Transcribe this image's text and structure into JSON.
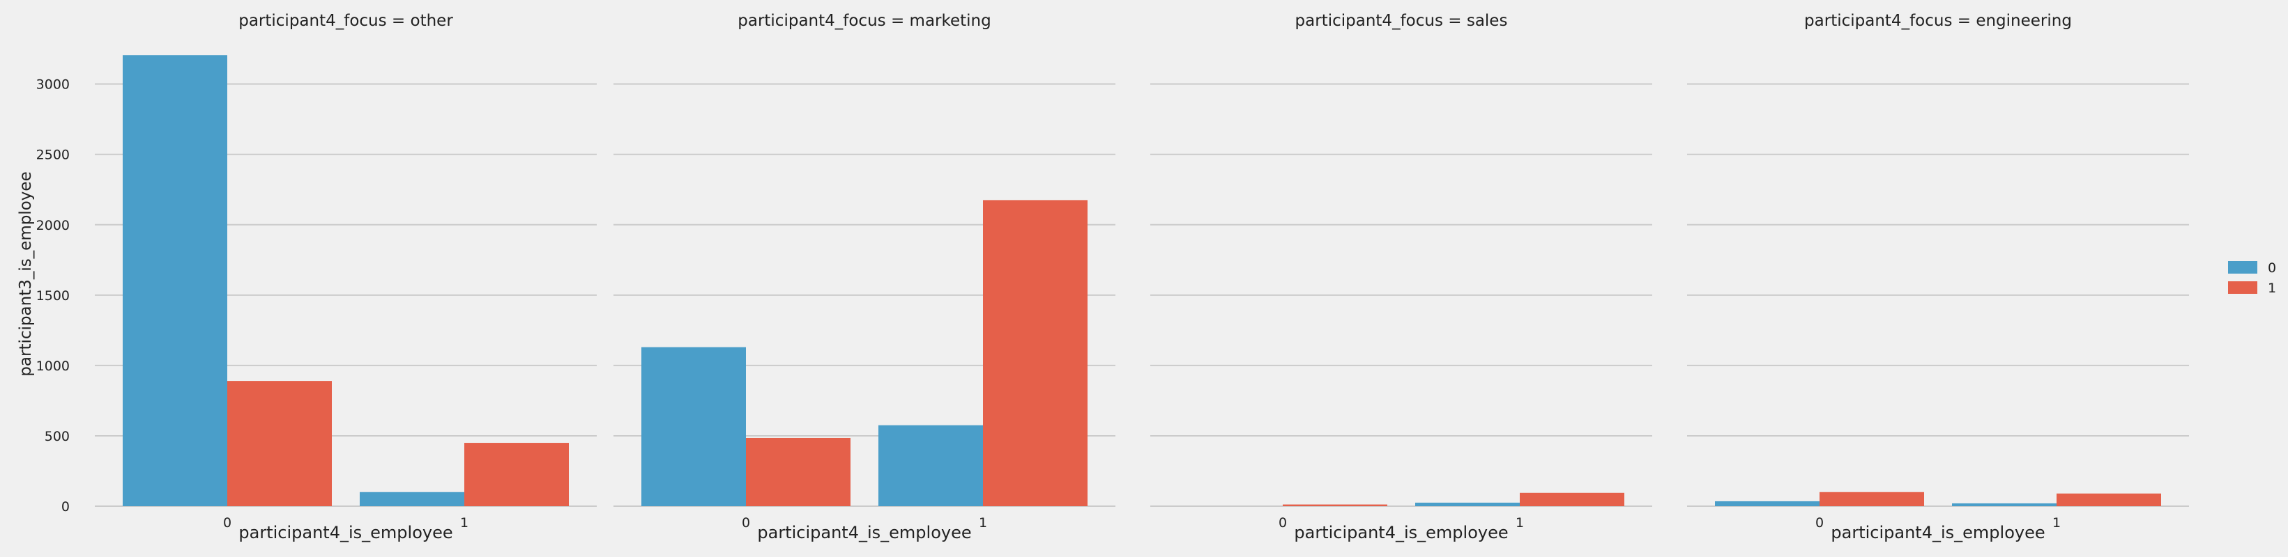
{
  "chart_data": {
    "type": "bar",
    "ylabel": "participant3_is_employee",
    "ylim": [
      0,
      3300
    ],
    "yticks": [
      0,
      500,
      1000,
      1500,
      2000,
      2500,
      3000
    ],
    "grid": true,
    "legend": {
      "placement": "right",
      "entries": [
        {
          "label": "0",
          "color": "#4a9ec9"
        },
        {
          "label": "1",
          "color": "#e5604a"
        }
      ]
    },
    "hue_values": [
      "0",
      "1"
    ],
    "facets": [
      {
        "title": "participant4_focus = other",
        "xlabel": "participant4_is_employee",
        "categories": [
          "0",
          "1"
        ],
        "series": [
          {
            "name": "0",
            "values": [
              3205,
              100
            ]
          },
          {
            "name": "1",
            "values": [
              890,
              450
            ]
          }
        ]
      },
      {
        "title": "participant4_focus = marketing",
        "xlabel": "participant4_is_employee",
        "categories": [
          "0",
          "1"
        ],
        "series": [
          {
            "name": "0",
            "values": [
              1130,
              575
            ]
          },
          {
            "name": "1",
            "values": [
              485,
              2175
            ]
          }
        ]
      },
      {
        "title": "participant4_focus = sales",
        "xlabel": "participant4_is_employee",
        "categories": [
          "0",
          "1"
        ],
        "series": [
          {
            "name": "0",
            "values": [
              0,
              25
            ]
          },
          {
            "name": "1",
            "values": [
              12,
              95
            ]
          }
        ]
      },
      {
        "title": "participant4_focus = engineering",
        "xlabel": "participant4_is_employee",
        "categories": [
          "0",
          "1"
        ],
        "series": [
          {
            "name": "0",
            "values": [
              35,
              20
            ]
          },
          {
            "name": "1",
            "values": [
              100,
              90
            ]
          }
        ]
      }
    ]
  }
}
